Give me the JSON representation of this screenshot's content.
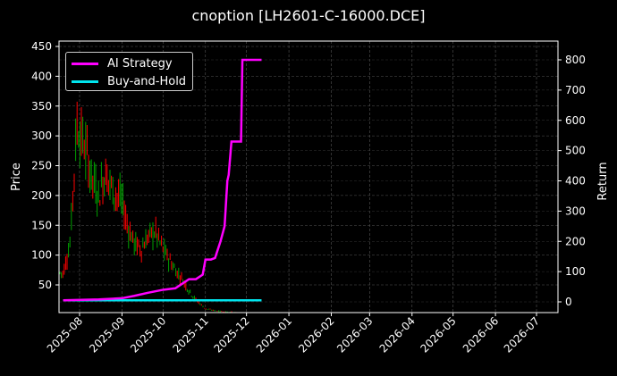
{
  "chart_data": {
    "type": "line",
    "title": "cnoption [LH2601-C-16000.DCE]",
    "xlabel": "",
    "ylabel": "Price",
    "ylabel_right": "Return",
    "ylim": [
      0,
      450
    ],
    "ylim_right": [
      -40,
      840
    ],
    "grid": true,
    "legend_position": "upper left",
    "x_ticks": [
      "2025-08",
      "2025-09",
      "2025-10",
      "2025-11",
      "2025-12",
      "2026-01",
      "2026-02",
      "2026-03",
      "2026-04",
      "2026-05",
      "2026-06",
      "2026-07"
    ],
    "y_ticks_left": [
      50,
      100,
      150,
      200,
      250,
      300,
      350,
      400,
      450
    ],
    "y_ticks_right": [
      0,
      100,
      200,
      300,
      400,
      500,
      600,
      700,
      800
    ],
    "legend": [
      "AI Strategy",
      "Buy-and-Hold"
    ],
    "series": [
      {
        "name": "AI Strategy",
        "axis": "right",
        "color": "#ff00ff",
        "x": [
          "2025-07-20",
          "2025-08-15",
          "2025-09-01",
          "2025-09-10",
          "2025-09-20",
          "2025-10-01",
          "2025-10-10",
          "2025-10-15",
          "2025-10-20",
          "2025-10-25",
          "2025-10-30",
          "2025-11-01",
          "2025-11-05",
          "2025-11-08",
          "2025-11-12",
          "2025-11-15",
          "2025-11-17",
          "2025-11-18",
          "2025-11-20",
          "2025-11-27",
          "2025-11-28",
          "2025-12-12"
        ],
        "values": [
          5,
          8,
          12,
          20,
          30,
          40,
          45,
          60,
          75,
          75,
          90,
          140,
          140,
          145,
          200,
          250,
          400,
          420,
          530,
          530,
          800,
          800
        ]
      },
      {
        "name": "Buy-and-Hold",
        "axis": "right",
        "color": "#00e5ee",
        "x": [
          "2025-07-20",
          "2025-12-12"
        ],
        "values": [
          5,
          5
        ]
      },
      {
        "name": "Price (candlestick)",
        "axis": "left",
        "up_color": "#00a000",
        "down_color": "#ff0000",
        "x": [
          "2025-07-20",
          "2025-07-25",
          "2025-07-30",
          "2025-08-05",
          "2025-08-10",
          "2025-08-15",
          "2025-08-20",
          "2025-08-25",
          "2025-09-01",
          "2025-09-05",
          "2025-09-10",
          "2025-09-15",
          "2025-09-20",
          "2025-09-25",
          "2025-10-01",
          "2025-10-10",
          "2025-10-15",
          "2025-10-20",
          "2025-10-25",
          "2025-11-01",
          "2025-11-05",
          "2025-11-10",
          "2025-11-15",
          "2025-11-20",
          "2025-11-25"
        ],
        "values": [
          70,
          120,
          320,
          280,
          230,
          200,
          240,
          210,
          190,
          150,
          120,
          110,
          130,
          140,
          110,
          75,
          60,
          40,
          25,
          10,
          8,
          6,
          5,
          4,
          3
        ]
      }
    ]
  }
}
